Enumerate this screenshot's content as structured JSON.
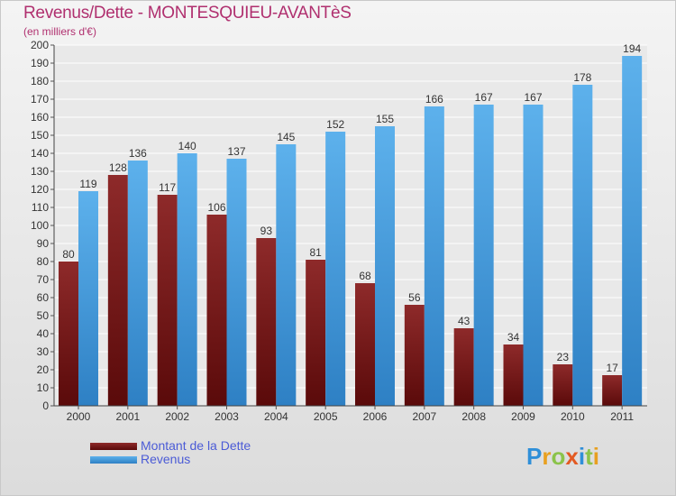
{
  "header": {
    "title": "Revenus/Dette - MONTESQUIEU-AVANTèS",
    "subtitle": "(en milliers d'€)"
  },
  "legend": {
    "items": [
      {
        "label": "Montant de la Dette",
        "color": "#6b1010"
      },
      {
        "label": "Revenus",
        "color": "#4aa3e3"
      }
    ]
  },
  "brand": {
    "logo_text": "Proxiti"
  },
  "colors": {
    "debt_top": "#8e2a2a",
    "debt_bottom": "#5a0a0a",
    "revenue_top": "#5db1ec",
    "revenue_bottom": "#2e80c4",
    "title": "#b0306f",
    "legend_text": "#4b5bd6"
  },
  "chart_data": {
    "type": "bar",
    "title": "Revenus/Dette - MONTESQUIEU-AVANTèS",
    "subtitle": "(en milliers d'€)",
    "xlabel": "",
    "ylabel": "",
    "ylim": [
      0,
      200
    ],
    "ytick_step": 10,
    "grid": true,
    "legend_position": "bottom-left",
    "categories": [
      "2000",
      "2001",
      "2002",
      "2003",
      "2004",
      "2005",
      "2006",
      "2007",
      "2008",
      "2009",
      "2010",
      "2011"
    ],
    "series": [
      {
        "name": "Montant de la Dette",
        "values": [
          80,
          128,
          117,
          106,
          93,
          81,
          68,
          56,
          43,
          34,
          23,
          17
        ]
      },
      {
        "name": "Revenus",
        "values": [
          119,
          136,
          140,
          137,
          145,
          152,
          155,
          166,
          167,
          167,
          178,
          194
        ]
      }
    ]
  }
}
